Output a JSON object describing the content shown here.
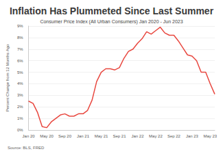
{
  "chart_data": {
    "type": "line",
    "title": "Inflation Has Plummeted Since Last Summer",
    "subtitle": "Consumer Price Index (All Urban Consumers) Jan 2020 - Jun 2023",
    "ylabel": "Percent Change from 12 Months Ago",
    "source": "Source: BLS, FRED",
    "categories": [
      "Jan 20",
      null,
      null,
      null,
      "May 20",
      null,
      null,
      null,
      "Sep 20",
      null,
      null,
      null,
      "Jan 21",
      null,
      null,
      null,
      "May 21",
      null,
      null,
      null,
      "Sep 21",
      null,
      null,
      null,
      "Jan 22",
      null,
      null,
      null,
      "May 22",
      null,
      null,
      null,
      "Sep 22",
      null,
      null,
      null,
      "Jan 23",
      null,
      null,
      null,
      "May 23",
      null
    ],
    "values": [
      2.5,
      2.3,
      1.5,
      0.3,
      0.2,
      0.7,
      1.0,
      1.3,
      1.4,
      1.2,
      1.2,
      1.4,
      1.4,
      1.7,
      2.6,
      4.2,
      5.0,
      5.3,
      5.3,
      5.2,
      5.4,
      6.2,
      6.8,
      7.0,
      7.5,
      7.9,
      8.5,
      8.3,
      8.6,
      8.9,
      8.4,
      8.2,
      8.2,
      7.7,
      7.1,
      6.5,
      6.4,
      6.0,
      5.0,
      5.0,
      4.0,
      3.1
    ],
    "color": "#e8473f",
    "ylim": [
      0,
      9
    ],
    "yticks": [
      {
        "value": 0,
        "label": "0%"
      },
      {
        "value": 1,
        "label": "1%"
      },
      {
        "value": 2,
        "label": "2%"
      },
      {
        "value": 3,
        "label": "3%"
      },
      {
        "value": 4,
        "label": "4%"
      },
      {
        "value": 5,
        "label": "5%"
      },
      {
        "value": 6,
        "label": "6%"
      },
      {
        "value": 7,
        "label": "7%"
      },
      {
        "value": 8,
        "label": "8%"
      },
      {
        "value": 9,
        "label": "9%"
      }
    ],
    "grid": true
  }
}
